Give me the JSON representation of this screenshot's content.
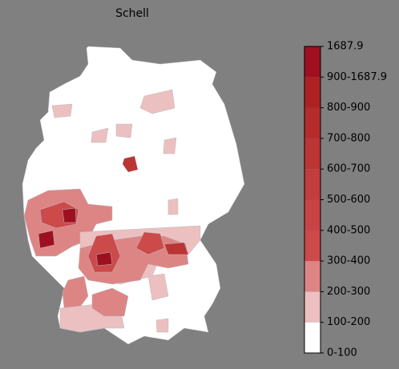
{
  "title": "Schell",
  "legend": {
    "labels": [
      "0-100",
      "100-200",
      "200-300",
      "300-400",
      "400-500",
      "500-600",
      "600-700",
      "700-800",
      "800-900",
      "900-1687.9",
      "1687.9"
    ],
    "colors": [
      "#ffffff",
      "#ecc0c0",
      "#dd8585",
      "#cc4a4a",
      "#c84444",
      "#c23d3d",
      "#bb3535",
      "#b42c2c",
      "#ac2222",
      "#9e1020"
    ]
  }
}
